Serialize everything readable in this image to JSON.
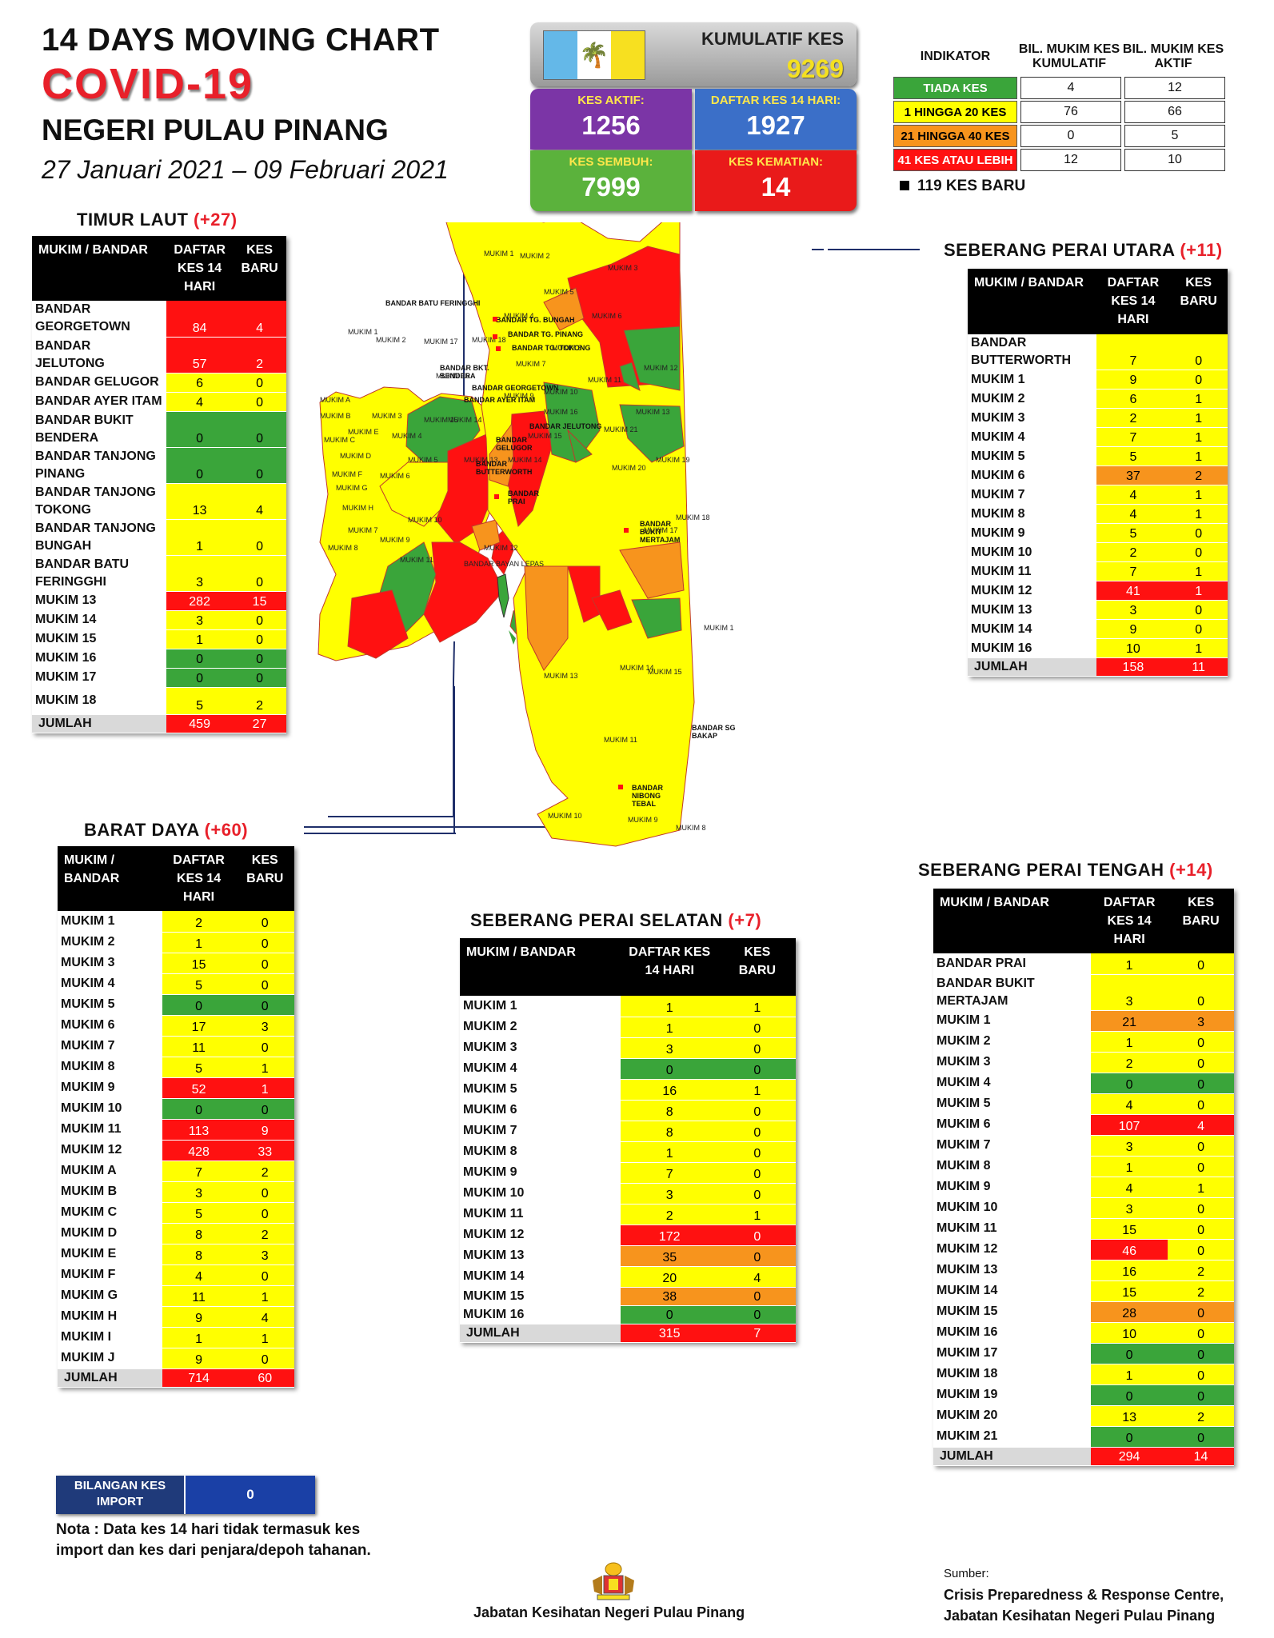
{
  "header": {
    "title": "14  DAYS MOVING CHART",
    "covid": "COVID-19",
    "state": "NEGERI PULAU PINANG",
    "date_range": "27 Januari 2021 – 09 Februari 2021"
  },
  "summary": {
    "kumulatif_label": "KUMULATIF KES",
    "kumulatif_value": "9269",
    "aktif_label": "KES AKTIF:",
    "aktif_value": "1256",
    "daftar14_label": "DAFTAR KES 14 HARI:",
    "daftar14_value": "1927",
    "sembuh_label": "KES SEMBUH:",
    "sembuh_value": "7999",
    "kematian_label": "KES KEMATIAN:",
    "kematian_value": "14"
  },
  "indicator": {
    "headers": [
      "INDIKATOR",
      "BIL. MUKIM KES KUMULATIF",
      "BIL. MUKIM KES AKTIF"
    ],
    "rows": [
      {
        "label": "TIADA KES",
        "kumulatif": "4",
        "aktif": "12",
        "color": "#3aa53a",
        "text": "#ffffff"
      },
      {
        "label": "1 HINGGA 20 KES",
        "kumulatif": "76",
        "aktif": "66",
        "color": "#ffff00",
        "text": "#000000"
      },
      {
        "label": "21 HINGGA 40 KES",
        "kumulatif": "0",
        "aktif": "5",
        "color": "#f7941d",
        "text": "#000000"
      },
      {
        "label": "41 KES ATAU LEBIH",
        "kumulatif": "12",
        "aktif": "10",
        "color": "#ff1111",
        "text": "#ffffff"
      }
    ],
    "new_cases": "119 KES BARU"
  },
  "colors": {
    "green": "#3aa53a",
    "yellow": "#ffff00",
    "orange": "#f7941d",
    "red": "#ff1111"
  },
  "tables": {
    "timur_laut": {
      "title": "TIMUR LAUT",
      "plus": "(+27)",
      "headers": [
        "MUKIM / BANDAR",
        "DAFTAR KES 14 HARI",
        "KES BARU"
      ],
      "rows": [
        [
          "BANDAR GEORGETOWN",
          "84",
          "4",
          "red",
          "red"
        ],
        [
          "BANDAR JELUTONG",
          "57",
          "2",
          "red",
          "red"
        ],
        [
          "BANDAR GELUGOR",
          "6",
          "0",
          "yellow",
          "yellow"
        ],
        [
          "BANDAR AYER ITAM",
          "4",
          "0",
          "yellow",
          "yellow"
        ],
        [
          "BANDAR BUKIT BENDERA",
          "0",
          "0",
          "green",
          "green"
        ],
        [
          "BANDAR TANJONG PINANG",
          "0",
          "0",
          "green",
          "green"
        ],
        [
          "BANDAR TANJONG TOKONG",
          "13",
          "4",
          "yellow",
          "yellow"
        ],
        [
          "BANDAR TANJONG BUNGAH",
          "1",
          "0",
          "yellow",
          "yellow"
        ],
        [
          "BANDAR BATU FERINGGHI",
          "3",
          "0",
          "yellow",
          "yellow"
        ],
        [
          "MUKIM 13",
          "282",
          "15",
          "red",
          "red"
        ],
        [
          "MUKIM 14",
          "3",
          "0",
          "yellow",
          "yellow"
        ],
        [
          "MUKIM 15",
          "1",
          "0",
          "yellow",
          "yellow"
        ],
        [
          "MUKIM 16",
          "0",
          "0",
          "green",
          "green"
        ],
        [
          "MUKIM 17",
          "0",
          "0",
          "green",
          "green"
        ],
        [
          "MUKIM 18",
          "5",
          "2",
          "yellow",
          "yellow"
        ]
      ],
      "total": [
        "JUMLAH",
        "459",
        "27"
      ]
    },
    "barat_daya": {
      "title": "BARAT DAYA",
      "plus": "(+60)",
      "headers": [
        "MUKIM / BANDAR",
        "DAFTAR KES 14 HARI",
        "KES BARU"
      ],
      "rows": [
        [
          "MUKIM 1",
          "2",
          "0",
          "yellow",
          "yellow"
        ],
        [
          "MUKIM 2",
          "1",
          "0",
          "yellow",
          "yellow"
        ],
        [
          "MUKIM 3",
          "15",
          "0",
          "yellow",
          "yellow"
        ],
        [
          "MUKIM 4",
          "5",
          "0",
          "yellow",
          "yellow"
        ],
        [
          "MUKIM 5",
          "0",
          "0",
          "green",
          "green"
        ],
        [
          "MUKIM 6",
          "17",
          "3",
          "yellow",
          "yellow"
        ],
        [
          "MUKIM 7",
          "11",
          "0",
          "yellow",
          "yellow"
        ],
        [
          "MUKIM 8",
          "5",
          "1",
          "yellow",
          "yellow"
        ],
        [
          "MUKIM 9",
          "52",
          "1",
          "red",
          "red"
        ],
        [
          "MUKIM 10",
          "0",
          "0",
          "green",
          "green"
        ],
        [
          "MUKIM 11",
          "113",
          "9",
          "red",
          "red"
        ],
        [
          "MUKIM 12",
          "428",
          "33",
          "red",
          "red"
        ],
        [
          "MUKIM A",
          "7",
          "2",
          "yellow",
          "yellow"
        ],
        [
          "MUKIM B",
          "3",
          "0",
          "yellow",
          "yellow"
        ],
        [
          "MUKIM C",
          "5",
          "0",
          "yellow",
          "yellow"
        ],
        [
          "MUKIM D",
          "8",
          "2",
          "yellow",
          "yellow"
        ],
        [
          "MUKIM E",
          "8",
          "3",
          "yellow",
          "yellow"
        ],
        [
          "MUKIM F",
          "4",
          "0",
          "yellow",
          "yellow"
        ],
        [
          "MUKIM G",
          "11",
          "1",
          "yellow",
          "yellow"
        ],
        [
          "MUKIM H",
          "9",
          "4",
          "yellow",
          "yellow"
        ],
        [
          "MUKIM I",
          "1",
          "1",
          "yellow",
          "yellow"
        ],
        [
          "MUKIM J",
          "9",
          "0",
          "yellow",
          "yellow"
        ]
      ],
      "total": [
        "JUMLAH",
        "714",
        "60"
      ]
    },
    "spu": {
      "title": "SEBERANG PERAI UTARA",
      "plus": "(+11)",
      "headers": [
        "MUKIM / BANDAR",
        "DAFTAR KES 14 HARI",
        "KES BARU"
      ],
      "rows": [
        [
          "BANDAR BUTTERWORTH",
          "7",
          "0",
          "yellow",
          "yellow"
        ],
        [
          "MUKIM 1",
          "9",
          "0",
          "yellow",
          "yellow"
        ],
        [
          "MUKIM 2",
          "6",
          "1",
          "yellow",
          "yellow"
        ],
        [
          "MUKIM 3",
          "2",
          "1",
          "yellow",
          "yellow"
        ],
        [
          "MUKIM 4",
          "7",
          "1",
          "yellow",
          "yellow"
        ],
        [
          "MUKIM 5",
          "5",
          "1",
          "yellow",
          "yellow"
        ],
        [
          "MUKIM 6",
          "37",
          "2",
          "orange",
          "orange"
        ],
        [
          "MUKIM 7",
          "4",
          "1",
          "yellow",
          "yellow"
        ],
        [
          "MUKIM 8",
          "4",
          "1",
          "yellow",
          "yellow"
        ],
        [
          "MUKIM 9",
          "5",
          "0",
          "yellow",
          "yellow"
        ],
        [
          "MUKIM 10",
          "2",
          "0",
          "yellow",
          "yellow"
        ],
        [
          "MUKIM 11",
          "7",
          "1",
          "yellow",
          "yellow"
        ],
        [
          "MUKIM 12",
          "41",
          "1",
          "red",
          "red"
        ],
        [
          "MUKIM 13",
          "3",
          "0",
          "yellow",
          "yellow"
        ],
        [
          "MUKIM 14",
          "9",
          "0",
          "yellow",
          "yellow"
        ],
        [
          "MUKIM 16",
          "10",
          "1",
          "yellow",
          "yellow"
        ]
      ],
      "total": [
        "JUMLAH",
        "158",
        "11"
      ]
    },
    "sps": {
      "title": "SEBERANG PERAI SELATAN",
      "plus": "(+7)",
      "headers": [
        "MUKIM / BANDAR",
        "DAFTAR KES 14 HARI",
        "KES BARU"
      ],
      "rows": [
        [
          "MUKIM 1",
          "1",
          "1",
          "yellow",
          "yellow"
        ],
        [
          "MUKIM 2",
          "1",
          "0",
          "yellow",
          "yellow"
        ],
        [
          "MUKIM 3",
          "3",
          "0",
          "yellow",
          "yellow"
        ],
        [
          "MUKIM 4",
          "0",
          "0",
          "green",
          "green"
        ],
        [
          "MUKIM 5",
          "16",
          "1",
          "yellow",
          "yellow"
        ],
        [
          "MUKIM 6",
          "8",
          "0",
          "yellow",
          "yellow"
        ],
        [
          "MUKIM 7",
          "8",
          "0",
          "yellow",
          "yellow"
        ],
        [
          "MUKIM 8",
          "1",
          "0",
          "yellow",
          "yellow"
        ],
        [
          "MUKIM 9",
          "7",
          "0",
          "yellow",
          "yellow"
        ],
        [
          "MUKIM 10",
          "3",
          "0",
          "yellow",
          "yellow"
        ],
        [
          "MUKIM 11",
          "2",
          "1",
          "yellow",
          "yellow"
        ],
        [
          "MUKIM 12",
          "172",
          "0",
          "red",
          "red"
        ],
        [
          "MUKIM 13",
          "35",
          "0",
          "orange",
          "orange"
        ],
        [
          "MUKIM 14",
          "20",
          "4",
          "yellow",
          "yellow"
        ],
        [
          "MUKIM 15",
          "38",
          "0",
          "orange",
          "orange"
        ],
        [
          "MUKIM 16",
          "0",
          "0",
          "green",
          "green"
        ]
      ],
      "total": [
        "JUMLAH",
        "315",
        "7"
      ]
    },
    "spt": {
      "title": "SEBERANG PERAI TENGAH",
      "plus": "(+14)",
      "headers": [
        "MUKIM / BANDAR",
        "DAFTAR KES 14 HARI",
        "KES BARU"
      ],
      "rows": [
        [
          "BANDAR PRAI",
          "1",
          "0",
          "yellow",
          "yellow"
        ],
        [
          "BANDAR BUKIT MERTAJAM",
          "3",
          "0",
          "yellow",
          "yellow"
        ],
        [
          "MUKIM 1",
          "21",
          "3",
          "orange",
          "orange"
        ],
        [
          "MUKIM 2",
          "1",
          "0",
          "yellow",
          "yellow"
        ],
        [
          "MUKIM 3",
          "2",
          "0",
          "yellow",
          "yellow"
        ],
        [
          "MUKIM 4",
          "0",
          "0",
          "green",
          "green"
        ],
        [
          "MUKIM 5",
          "4",
          "0",
          "yellow",
          "yellow"
        ],
        [
          "MUKIM 6",
          "107",
          "4",
          "red",
          "red"
        ],
        [
          "MUKIM 7",
          "3",
          "0",
          "yellow",
          "yellow"
        ],
        [
          "MUKIM 8",
          "1",
          "0",
          "yellow",
          "yellow"
        ],
        [
          "MUKIM 9",
          "4",
          "1",
          "yellow",
          "yellow"
        ],
        [
          "MUKIM 10",
          "3",
          "0",
          "yellow",
          "yellow"
        ],
        [
          "MUKIM 11",
          "15",
          "0",
          "yellow",
          "yellow"
        ],
        [
          "MUKIM 12",
          "46",
          "0",
          "red",
          "yellow"
        ],
        [
          "MUKIM 13",
          "16",
          "2",
          "yellow",
          "yellow"
        ],
        [
          "MUKIM 14",
          "15",
          "2",
          "yellow",
          "yellow"
        ],
        [
          "MUKIM 15",
          "28",
          "0",
          "orange",
          "orange"
        ],
        [
          "MUKIM 16",
          "10",
          "0",
          "yellow",
          "yellow"
        ],
        [
          "MUKIM 17",
          "0",
          "0",
          "green",
          "green"
        ],
        [
          "MUKIM 18",
          "1",
          "0",
          "yellow",
          "yellow"
        ],
        [
          "MUKIM 19",
          "0",
          "0",
          "green",
          "green"
        ],
        [
          "MUKIM 20",
          "13",
          "2",
          "yellow",
          "yellow"
        ],
        [
          "MUKIM 21",
          "0",
          "0",
          "green",
          "green"
        ]
      ],
      "total": [
        "JUMLAH",
        "294",
        "14"
      ]
    }
  },
  "map_labels": {
    "island": [
      "BANDAR BATU FERINGGHI",
      "BANDAR TG. BUNGAH",
      "BANDAR TG. PINANG",
      "BANDAR TG. TOKONG",
      "BANDAR BKT. BENDERA",
      "BANDAR GEORGETOWN",
      "BANDAR AYER ITAM",
      "BANDAR JELUTONG",
      "BANDAR GELUGOR",
      "BANDAR BAYAN LEPAS",
      "MUKIM 13",
      "MUKIM 12",
      "MUKIM 17",
      "MUKIM 18",
      "MUKIM 16",
      "MUKIM 14",
      "MUKIM 15",
      "MUKIM 10",
      "MUKIM 11",
      "MUKIM 1",
      "MUKIM 2",
      "MUKIM 3",
      "MUKIM 4",
      "MUKIM 5",
      "MUKIM 6",
      "MUKIM 7",
      "MUKIM 8",
      "MUKIM 9",
      "MUKIM A",
      "MUKIM B",
      "MUKIM C",
      "MUKIM D",
      "MUKIM E",
      "MUKIM F",
      "MUKIM G",
      "MUKIM H"
    ],
    "mainland": [
      "BANDAR BUTTERWORTH",
      "BANDAR PRAI",
      "BANDAR BUKIT MERTAJAM",
      "BANDAR SG BAKAP",
      "BANDAR NIBONG TEBAL",
      "MUKIM 1",
      "MUKIM 2",
      "MUKIM 3",
      "MUKIM 4",
      "MUKIM 5",
      "MUKIM 6",
      "MUKIM 7",
      "MUKIM 8",
      "MUKIM 9",
      "MUKIM 10",
      "MUKIM 11",
      "MUKIM 12",
      "MUKIM 13",
      "MUKIM 14",
      "MUKIM 15",
      "MUKIM 16",
      "MUKIM 17",
      "MUKIM 18",
      "MUKIM 19",
      "MUKIM 20",
      "MUKIM 21"
    ]
  },
  "import": {
    "label": "BILANGAN KES IMPORT",
    "value": "0"
  },
  "nota": "Nota : Data kes 14 hari tidak termasuk kes import dan kes dari penjara/depoh tahanan.",
  "footer": {
    "center": "Jabatan Kesihatan Negeri Pulau Pinang",
    "source_label": "Sumber:",
    "source_line1": "Crisis Preparedness & Response Centre,",
    "source_line2": "Jabatan Kesihatan Negeri Pulau Pinang"
  }
}
